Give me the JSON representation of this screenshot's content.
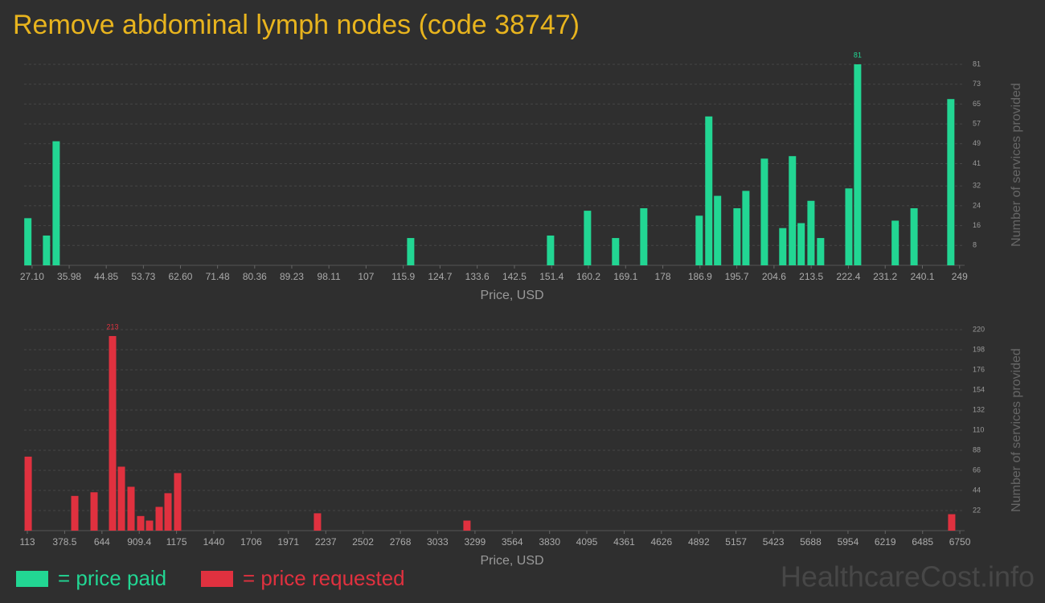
{
  "title": "Remove abdominal lymph nodes (code 38747)",
  "watermark": "HealthcareCost.info",
  "chart_data": [
    {
      "type": "bar",
      "x_label": "Price, USD",
      "y_label": "Number of services provided",
      "label_max": true,
      "grid": true,
      "xlim": [
        25.2,
        250.2
      ],
      "ylim": [
        0,
        81
      ],
      "xticks": [
        {
          "value": 27.1,
          "label": "27.10"
        },
        35.98,
        44.85,
        53.73,
        {
          "value": 62.6,
          "label": "62.60"
        },
        71.48,
        80.36,
        89.23,
        98.11,
        107,
        115.9,
        124.7,
        133.6,
        142.5,
        151.4,
        160.2,
        169.1,
        178,
        186.9,
        195.7,
        204.6,
        213.5,
        222.4,
        231.2,
        240.1,
        249
      ],
      "yticks": [
        8,
        16,
        24,
        32,
        41,
        49,
        57,
        65,
        73,
        81
      ],
      "series": [
        {
          "name": "= price paid",
          "color": "#22d693",
          "x": [
            26.1,
            30.56,
            32.87,
            117.68,
            151.14,
            159.98,
            166.7,
            173.44,
            186.7,
            189.0,
            191.1,
            195.75,
            197.87,
            202.3,
            206.7,
            209.0,
            211.1,
            213.45,
            215.75,
            222.5,
            224.6,
            233.6,
            238.1,
            246.9
          ],
          "values": [
            19,
            12,
            50,
            11,
            12,
            22,
            11,
            23,
            20,
            60,
            28,
            23,
            30,
            43,
            15,
            44,
            17,
            26,
            11,
            31,
            81,
            18,
            23,
            67
          ]
        }
      ]
    },
    {
      "type": "bar",
      "x_label": "Price, USD",
      "y_label": "Number of services provided",
      "label_max": true,
      "grid": true,
      "xlim": [
        90,
        6784
      ],
      "ylim": [
        0,
        220
      ],
      "xticks": [
        113,
        378.5,
        644,
        909.4,
        1175,
        1440,
        1706,
        1971,
        2237,
        2502,
        2768,
        3033,
        3299,
        3564,
        3830,
        4095,
        4361,
        4626,
        4892,
        5157,
        5423,
        5688,
        5954,
        6219,
        6485,
        6750
      ],
      "yticks": [
        22,
        44,
        66,
        88,
        110,
        132,
        154,
        176,
        198,
        220
      ],
      "series": [
        {
          "name": "= price requested",
          "color": "#e0313f",
          "x": [
            119,
            450.5,
            587.8,
            719.4,
            782.4,
            851,
            919.7,
            982.6,
            1051.3,
            1114.2,
            1182.8,
            2178,
            3242,
            6692
          ],
          "values": [
            81,
            38,
            42,
            213,
            70,
            48,
            16,
            11,
            26,
            41,
            63,
            19,
            11,
            18
          ]
        }
      ]
    }
  ]
}
